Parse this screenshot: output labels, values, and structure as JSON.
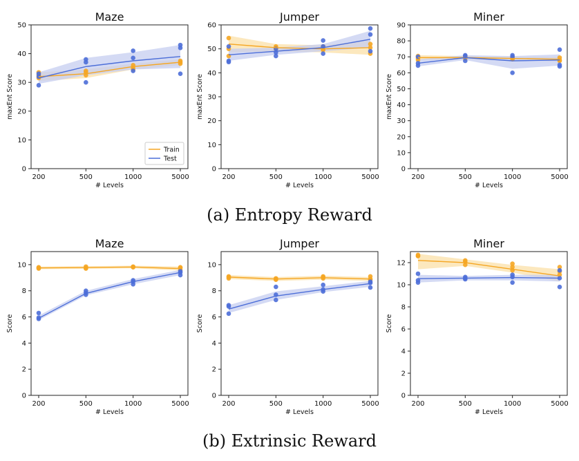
{
  "figure": {
    "caption_a": "(a) Entropy Reward",
    "caption_b": "(b) Extrinsic Reward"
  },
  "legend": {
    "train": "Train",
    "test": "Test"
  },
  "colors": {
    "train": "#f5a623",
    "test": "#4c6ed8",
    "train_band": "#fbe0a8",
    "test_band": "#c5cdf0"
  },
  "chart_data": [
    {
      "type": "line",
      "title": "Maze",
      "xlabel": "# Levels",
      "ylabel": "maxEnt Score",
      "categories": [
        "200",
        "500",
        "1000",
        "5000"
      ],
      "ylim": [
        0,
        50
      ],
      "yticks": [
        0,
        10,
        20,
        30,
        40,
        50
      ],
      "legend": "bottom-right",
      "series": [
        {
          "name": "Train",
          "values": [
            32,
            33,
            35.5,
            37
          ],
          "band_low": [
            30.5,
            31.5,
            34.5,
            36
          ],
          "band_high": [
            33.5,
            34.5,
            36.5,
            38
          ],
          "points": [
            [
              33.5,
              31.5,
              32.5
            ],
            [
              32.5,
              34,
              33.5
            ],
            [
              35,
              36,
              34.5
            ],
            [
              37,
              36.5,
              37.5
            ]
          ]
        },
        {
          "name": "Test",
          "values": [
            31.5,
            35.5,
            37.5,
            39
          ],
          "band_low": [
            29.5,
            32.5,
            34.5,
            35
          ],
          "band_high": [
            33.5,
            38.5,
            40.5,
            43
          ],
          "points": [
            [
              29,
              32,
              33
            ],
            [
              30,
              37,
              38
            ],
            [
              34,
              38.5,
              41
            ],
            [
              33,
              42,
              43
            ]
          ]
        }
      ]
    },
    {
      "type": "line",
      "title": "Jumper",
      "xlabel": "# Levels",
      "ylabel": "maxEnt Score",
      "categories": [
        "200",
        "500",
        "1000",
        "5000"
      ],
      "ylim": [
        0,
        60
      ],
      "yticks": [
        0,
        10,
        20,
        30,
        40,
        50,
        60
      ],
      "series": [
        {
          "name": "Train",
          "values": [
            52,
            50.5,
            50,
            50.5
          ],
          "band_low": [
            48.5,
            49,
            48.5,
            47.5
          ],
          "band_high": [
            55.5,
            52,
            51.5,
            53.5
          ],
          "points": [
            [
              54.5,
              47,
              50
            ],
            [
              51,
              50,
              50.5
            ],
            [
              50,
              49.5,
              51
            ],
            [
              48,
              52,
              50.5
            ]
          ]
        },
        {
          "name": "Test",
          "values": [
            47.5,
            49,
            50.5,
            54
          ],
          "band_low": [
            45,
            47.5,
            49,
            50.5
          ],
          "band_high": [
            50,
            50.5,
            52,
            57.5
          ],
          "points": [
            [
              44.5,
              51,
              45
            ],
            [
              47,
              48.5,
              50
            ],
            [
              48,
              51,
              53.5
            ],
            [
              49,
              56,
              58.5
            ]
          ]
        }
      ]
    },
    {
      "type": "line",
      "title": "Miner",
      "xlabel": "# Levels",
      "ylabel": "maxEnt Score",
      "categories": [
        "200",
        "500",
        "1000",
        "5000"
      ],
      "ylim": [
        0,
        90
      ],
      "yticks": [
        0,
        10,
        20,
        30,
        40,
        50,
        60,
        70,
        80,
        90
      ],
      "series": [
        {
          "name": "Train",
          "values": [
            69.5,
            69.5,
            69,
            68.5
          ],
          "band_low": [
            68,
            68.5,
            68,
            67
          ],
          "band_high": [
            71,
            70.5,
            70,
            70
          ],
          "points": [
            [
              69,
              70.5,
              68
            ],
            [
              70,
              69,
              70.5
            ],
            [
              68.5,
              70,
              69
            ],
            [
              68,
              69.5,
              67.5
            ]
          ]
        },
        {
          "name": "Test",
          "values": [
            66,
            69.5,
            67.5,
            68
          ],
          "band_low": [
            64,
            68,
            62.5,
            64.5
          ],
          "band_high": [
            68.5,
            71,
            70.5,
            71.5
          ],
          "points": [
            [
              64.5,
              70,
              66
            ],
            [
              67.5,
              70.5,
              71
            ],
            [
              60,
              70,
              71
            ],
            [
              64,
              74.5,
              65
            ]
          ]
        }
      ]
    },
    {
      "type": "line",
      "title": "Maze",
      "xlabel": "# Levels",
      "ylabel": "Score",
      "categories": [
        "200",
        "500",
        "1000",
        "5000"
      ],
      "ylim": [
        0,
        11
      ],
      "yticks": [
        0,
        2,
        4,
        6,
        8,
        10
      ],
      "series": [
        {
          "name": "Train",
          "values": [
            9.75,
            9.78,
            9.82,
            9.7
          ],
          "band_low": [
            9.65,
            9.68,
            9.72,
            9.55
          ],
          "band_high": [
            9.85,
            9.88,
            9.92,
            9.85
          ],
          "points": [
            [
              9.8,
              9.7,
              9.75
            ],
            [
              9.85,
              9.75,
              9.7
            ],
            [
              9.85,
              9.8,
              9.82
            ],
            [
              9.8,
              9.6,
              9.75
            ]
          ]
        },
        {
          "name": "Test",
          "values": [
            5.9,
            7.8,
            8.7,
            9.4
          ],
          "band_low": [
            5.75,
            7.65,
            8.5,
            9.2
          ],
          "band_high": [
            6.1,
            8.0,
            8.9,
            9.6
          ],
          "points": [
            [
              6.3,
              5.85,
              5.95
            ],
            [
              7.7,
              8.0,
              7.85
            ],
            [
              8.5,
              8.8,
              8.7
            ],
            [
              9.2,
              9.5,
              9.4
            ]
          ]
        }
      ]
    },
    {
      "type": "line",
      "title": "Jumper",
      "xlabel": "# Levels",
      "ylabel": "Score",
      "categories": [
        "200",
        "500",
        "1000",
        "5000"
      ],
      "ylim": [
        0,
        11
      ],
      "yticks": [
        0,
        2,
        4,
        6,
        8,
        10
      ],
      "series": [
        {
          "name": "Train",
          "values": [
            9.05,
            8.9,
            9.0,
            8.9
          ],
          "band_low": [
            8.9,
            8.75,
            8.85,
            8.75
          ],
          "band_high": [
            9.2,
            9.05,
            9.15,
            9.05
          ],
          "points": [
            [
              9.1,
              8.95,
              9.05
            ],
            [
              8.85,
              8.95,
              8.9
            ],
            [
              9.05,
              8.95,
              9.1
            ],
            [
              9.1,
              8.85,
              8.9
            ]
          ]
        },
        {
          "name": "Test",
          "values": [
            6.6,
            7.6,
            8.1,
            8.55
          ],
          "band_low": [
            6.3,
            7.3,
            7.9,
            8.3
          ],
          "band_high": [
            6.9,
            7.95,
            8.35,
            8.75
          ],
          "points": [
            [
              6.25,
              6.8,
              6.9
            ],
            [
              7.3,
              7.7,
              8.3
            ],
            [
              7.95,
              8.1,
              8.45
            ],
            [
              8.25,
              8.6,
              8.7
            ]
          ]
        }
      ]
    },
    {
      "type": "line",
      "title": "Miner",
      "xlabel": "# Levels",
      "ylabel": "Score",
      "categories": [
        "200",
        "500",
        "1000",
        "5000"
      ],
      "ylim": [
        0,
        13
      ],
      "yticks": [
        0,
        2,
        4,
        6,
        8,
        10,
        12
      ],
      "series": [
        {
          "name": "Train",
          "values": [
            12.2,
            12.0,
            11.4,
            10.8
          ],
          "band_low": [
            11.4,
            11.7,
            11.1,
            10.3
          ],
          "band_high": [
            12.8,
            12.3,
            11.8,
            11.4
          ],
          "points": [
            [
              12.7,
              12.6,
              12.6
            ],
            [
              12.2,
              11.8,
              12.1
            ],
            [
              11.9,
              11.6,
              11.3
            ],
            [
              11.6,
              10.9,
              11.2
            ]
          ]
        },
        {
          "name": "Test",
          "values": [
            10.55,
            10.6,
            10.65,
            10.6
          ],
          "band_low": [
            10.2,
            10.4,
            10.4,
            10.3
          ],
          "band_high": [
            10.9,
            10.8,
            10.9,
            10.9
          ],
          "points": [
            [
              10.2,
              10.4,
              11.0
            ],
            [
              10.5,
              10.7,
              10.6
            ],
            [
              10.2,
              10.7,
              10.9
            ],
            [
              9.8,
              10.6,
              11.3
            ]
          ]
        }
      ]
    }
  ]
}
